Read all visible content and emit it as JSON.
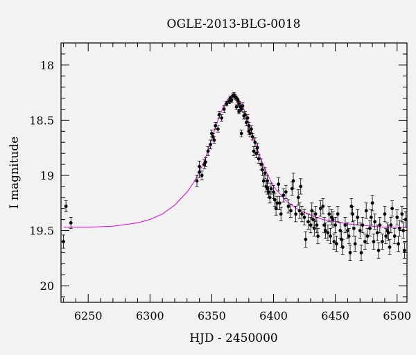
{
  "chart_data": {
    "type": "scatter",
    "title": "OGLE-2013-BLG-0018",
    "xlabel": "HJD - 2450000",
    "ylabel": "I magnitude",
    "xlim": [
      6228,
      6508
    ],
    "ylim": [
      20.15,
      17.8
    ],
    "y_inverted": true,
    "x_ticks": [
      6250,
      6300,
      6350,
      6400,
      6450,
      6500
    ],
    "x_tick_labels": [
      "6250",
      "6300",
      "6350",
      "6400",
      "6450",
      "6500"
    ],
    "y_ticks": [
      18,
      18.5,
      19,
      19.5,
      20
    ],
    "y_tick_labels": [
      "18",
      "18.5",
      "19",
      "19.5",
      "20"
    ],
    "grid": false,
    "colors": {
      "points": "#000000",
      "model": "#e000e0",
      "background": "#f2f2f2",
      "axes": "#000000"
    },
    "model": {
      "name": "",
      "color": "#e000e0",
      "x": [
        6230,
        6250,
        6270,
        6290,
        6300,
        6310,
        6320,
        6330,
        6335,
        6340,
        6345,
        6350,
        6355,
        6360,
        6365,
        6368,
        6372,
        6376,
        6380,
        6385,
        6390,
        6395,
        6400,
        6410,
        6420,
        6430,
        6440,
        6450,
        6460,
        6470,
        6480,
        6490,
        6500,
        6508
      ],
      "y": [
        19.47,
        19.47,
        19.46,
        19.43,
        19.4,
        19.35,
        19.27,
        19.15,
        19.07,
        18.97,
        18.84,
        18.67,
        18.5,
        18.36,
        18.28,
        18.27,
        18.31,
        18.4,
        18.53,
        18.7,
        18.86,
        18.99,
        19.1,
        19.23,
        19.31,
        19.36,
        19.4,
        19.42,
        19.44,
        19.45,
        19.46,
        19.47,
        19.47,
        19.47
      ]
    },
    "series": [
      {
        "name": "",
        "x": [
          6230,
          6232,
          6236,
          6338,
          6340,
          6342,
          6344,
          6345,
          6347,
          6349,
          6350,
          6351,
          6352,
          6353,
          6355,
          6358,
          6360,
          6362,
          6364,
          6365,
          6366,
          6367,
          6368,
          6369,
          6370,
          6370,
          6371,
          6372,
          6372,
          6373,
          6374,
          6375,
          6376,
          6377,
          6378,
          6379,
          6380,
          6380,
          6381,
          6382,
          6383,
          6384,
          6385,
          6386,
          6387,
          6388,
          6390,
          6391,
          6392,
          6393,
          6394,
          6395,
          6396,
          6397,
          6398,
          6400,
          6401,
          6402,
          6403,
          6404,
          6405,
          6406,
          6408,
          6410,
          6412,
          6414,
          6416,
          6418,
          6420,
          6421,
          6422,
          6423,
          6425,
          6426,
          6428,
          6430,
          6431,
          6432,
          6434,
          6435,
          6436,
          6438,
          6440,
          6441,
          6442,
          6444,
          6445,
          6446,
          6448,
          6449,
          6450,
          6451,
          6452,
          6454,
          6455,
          6456,
          6458,
          6460,
          6461,
          6462,
          6464,
          6465,
          6466,
          6468,
          6470,
          6471,
          6472,
          6474,
          6475,
          6476,
          6478,
          6480,
          6481,
          6482,
          6484,
          6485,
          6486,
          6488,
          6490,
          6491,
          6492,
          6494,
          6495,
          6496,
          6498,
          6500,
          6501,
          6502,
          6504,
          6505,
          6506,
          6507,
          6340,
          6356,
          6374,
          6395,
          6415,
          6433,
          6447,
          6463,
          6479,
          6493
        ],
        "y": [
          19.6,
          19.28,
          19.43,
          19.05,
          18.97,
          19.0,
          18.9,
          18.88,
          18.78,
          18.72,
          18.62,
          18.65,
          18.68,
          18.55,
          18.58,
          18.48,
          18.4,
          18.35,
          18.33,
          18.3,
          18.32,
          18.28,
          18.27,
          18.29,
          18.3,
          18.38,
          18.32,
          18.35,
          18.42,
          18.38,
          18.4,
          18.37,
          18.46,
          18.45,
          18.52,
          18.48,
          18.55,
          18.6,
          18.62,
          18.58,
          18.65,
          18.78,
          18.7,
          18.8,
          18.75,
          18.85,
          18.9,
          18.95,
          19.05,
          18.98,
          19.1,
          19.05,
          19.15,
          19.2,
          19.12,
          19.15,
          19.22,
          19.3,
          19.25,
          19.08,
          19.25,
          19.35,
          19.18,
          19.15,
          19.28,
          19.32,
          19.05,
          19.35,
          19.2,
          19.32,
          19.1,
          19.35,
          19.38,
          19.58,
          19.42,
          19.45,
          19.32,
          19.4,
          19.35,
          19.45,
          19.55,
          19.3,
          19.28,
          19.45,
          19.5,
          19.52,
          19.35,
          19.55,
          19.4,
          19.6,
          19.45,
          19.62,
          19.35,
          19.5,
          19.58,
          19.65,
          19.45,
          19.5,
          19.55,
          19.7,
          19.35,
          19.48,
          19.62,
          19.38,
          19.5,
          19.7,
          19.45,
          19.6,
          19.32,
          19.55,
          19.48,
          19.25,
          19.6,
          19.42,
          19.52,
          19.68,
          19.45,
          19.6,
          19.35,
          19.55,
          19.5,
          19.65,
          19.45,
          19.3,
          19.55,
          19.38,
          19.62,
          19.48,
          19.35,
          19.5,
          19.68,
          19.4,
          18.92,
          18.45,
          18.62,
          19.12,
          19.12,
          19.48,
          19.38,
          19.28,
          19.38,
          19.52
        ],
        "err": [
          0.06,
          0.05,
          0.05,
          0.05,
          0.05,
          0.04,
          0.04,
          0.04,
          0.04,
          0.04,
          0.03,
          0.03,
          0.03,
          0.03,
          0.03,
          0.03,
          0.03,
          0.02,
          0.02,
          0.02,
          0.02,
          0.02,
          0.02,
          0.02,
          0.02,
          0.02,
          0.02,
          0.02,
          0.02,
          0.02,
          0.02,
          0.03,
          0.03,
          0.03,
          0.03,
          0.03,
          0.03,
          0.03,
          0.03,
          0.03,
          0.03,
          0.04,
          0.04,
          0.04,
          0.04,
          0.04,
          0.05,
          0.05,
          0.05,
          0.05,
          0.05,
          0.05,
          0.05,
          0.05,
          0.05,
          0.06,
          0.06,
          0.06,
          0.06,
          0.06,
          0.06,
          0.06,
          0.06,
          0.06,
          0.06,
          0.06,
          0.07,
          0.07,
          0.07,
          0.07,
          0.07,
          0.07,
          0.07,
          0.07,
          0.07,
          0.07,
          0.07,
          0.07,
          0.07,
          0.07,
          0.07,
          0.07,
          0.07,
          0.07,
          0.07,
          0.07,
          0.07,
          0.07,
          0.07,
          0.07,
          0.07,
          0.07,
          0.07,
          0.07,
          0.07,
          0.07,
          0.07,
          0.07,
          0.07,
          0.07,
          0.07,
          0.07,
          0.07,
          0.07,
          0.07,
          0.07,
          0.07,
          0.07,
          0.07,
          0.07,
          0.07,
          0.07,
          0.07,
          0.07,
          0.07,
          0.07,
          0.07,
          0.07,
          0.07,
          0.07,
          0.07,
          0.07,
          0.07,
          0.07,
          0.07,
          0.07,
          0.07,
          0.07,
          0.07,
          0.07,
          0.07,
          0.07,
          0.05,
          0.03,
          0.03,
          0.05,
          0.06,
          0.07,
          0.07,
          0.07,
          0.07,
          0.07
        ]
      }
    ]
  }
}
